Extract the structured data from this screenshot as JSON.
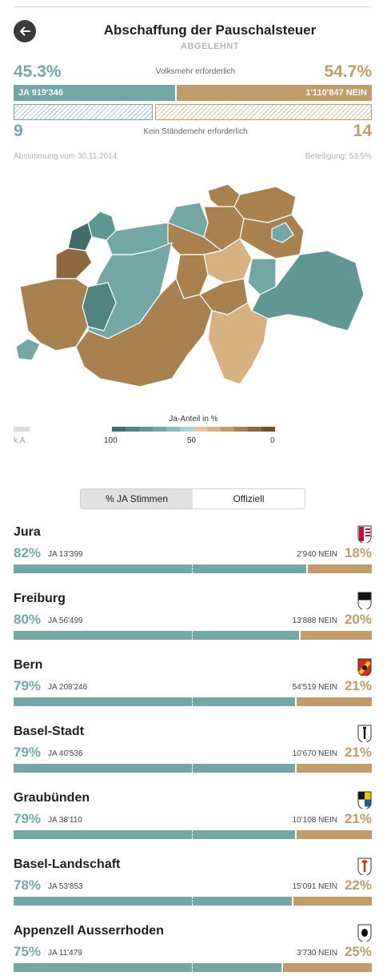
{
  "header": {
    "title": "Abschaffung der Pauschalsteuer",
    "status": "ABGELEHNT"
  },
  "result": {
    "yes_pct": "45.3%",
    "no_pct": "54.7%",
    "volksmehr_label": "Volksmehr erforderlich",
    "yes_label": "JA 919'346",
    "no_label": "1'110'847 NEIN",
    "yes_fraction": 0.453,
    "cantons_yes": "9",
    "cantons_no": "14",
    "staendemehr_label": "Kein Ständemehr erforderlich",
    "date_label": "Abstimmung vom 30.11.2014",
    "turnout_label": "Beteiligung: 53.5%"
  },
  "legend": {
    "title": "Ja-Anteil in %",
    "na_label": "k.A.",
    "ticks": [
      "100",
      "50",
      "0"
    ],
    "colors": [
      "#3d6e6b",
      "#4f8481",
      "#5f9795",
      "#72a7a6",
      "#8cbcbb",
      "#a8d4d6",
      "#e6c69c",
      "#d7b180",
      "#c19b68",
      "#a8814f",
      "#8c6a3d",
      "#6e5229"
    ]
  },
  "toggle": {
    "options": [
      "% JA Stimmen",
      "Offiziell"
    ],
    "active": 0
  },
  "colors": {
    "yes": "#72a7a6",
    "no": "#c19b68"
  },
  "cantons": [
    {
      "name": "Jura",
      "yes_pct": "82%",
      "yes_abs": "JA 13'399",
      "no_abs": "2'940 NEIN",
      "no_pct": "18%",
      "yes_fraction": 0.82,
      "flag": "jura-flag-icon"
    },
    {
      "name": "Freiburg",
      "yes_pct": "80%",
      "yes_abs": "JA 56'499",
      "no_abs": "13'888 NEIN",
      "no_pct": "20%",
      "yes_fraction": 0.8,
      "flag": "freiburg-flag-icon"
    },
    {
      "name": "Bern",
      "yes_pct": "79%",
      "yes_abs": "JA 208'246",
      "no_abs": "54'519 NEIN",
      "no_pct": "21%",
      "yes_fraction": 0.79,
      "flag": "bern-flag-icon"
    },
    {
      "name": "Basel-Stadt",
      "yes_pct": "79%",
      "yes_abs": "JA 40'536",
      "no_abs": "10'670 NEIN",
      "no_pct": "21%",
      "yes_fraction": 0.79,
      "flag": "basel-stadt-flag-icon"
    },
    {
      "name": "Graubünden",
      "yes_pct": "79%",
      "yes_abs": "JA 38'110",
      "no_abs": "10'108 NEIN",
      "no_pct": "21%",
      "yes_fraction": 0.79,
      "flag": "graubuenden-flag-icon"
    },
    {
      "name": "Basel-Landschaft",
      "yes_pct": "78%",
      "yes_abs": "JA 53'853",
      "no_abs": "15'091 NEIN",
      "no_pct": "22%",
      "yes_fraction": 0.78,
      "flag": "basel-landschaft-flag-icon"
    },
    {
      "name": "Appenzell Ausserrhoden",
      "yes_pct": "75%",
      "yes_abs": "JA 11'479",
      "no_abs": "3'730 NEIN",
      "no_pct": "25%",
      "yes_fraction": 0.75,
      "flag": "appenzell-ausserrhoden-flag-icon"
    }
  ]
}
